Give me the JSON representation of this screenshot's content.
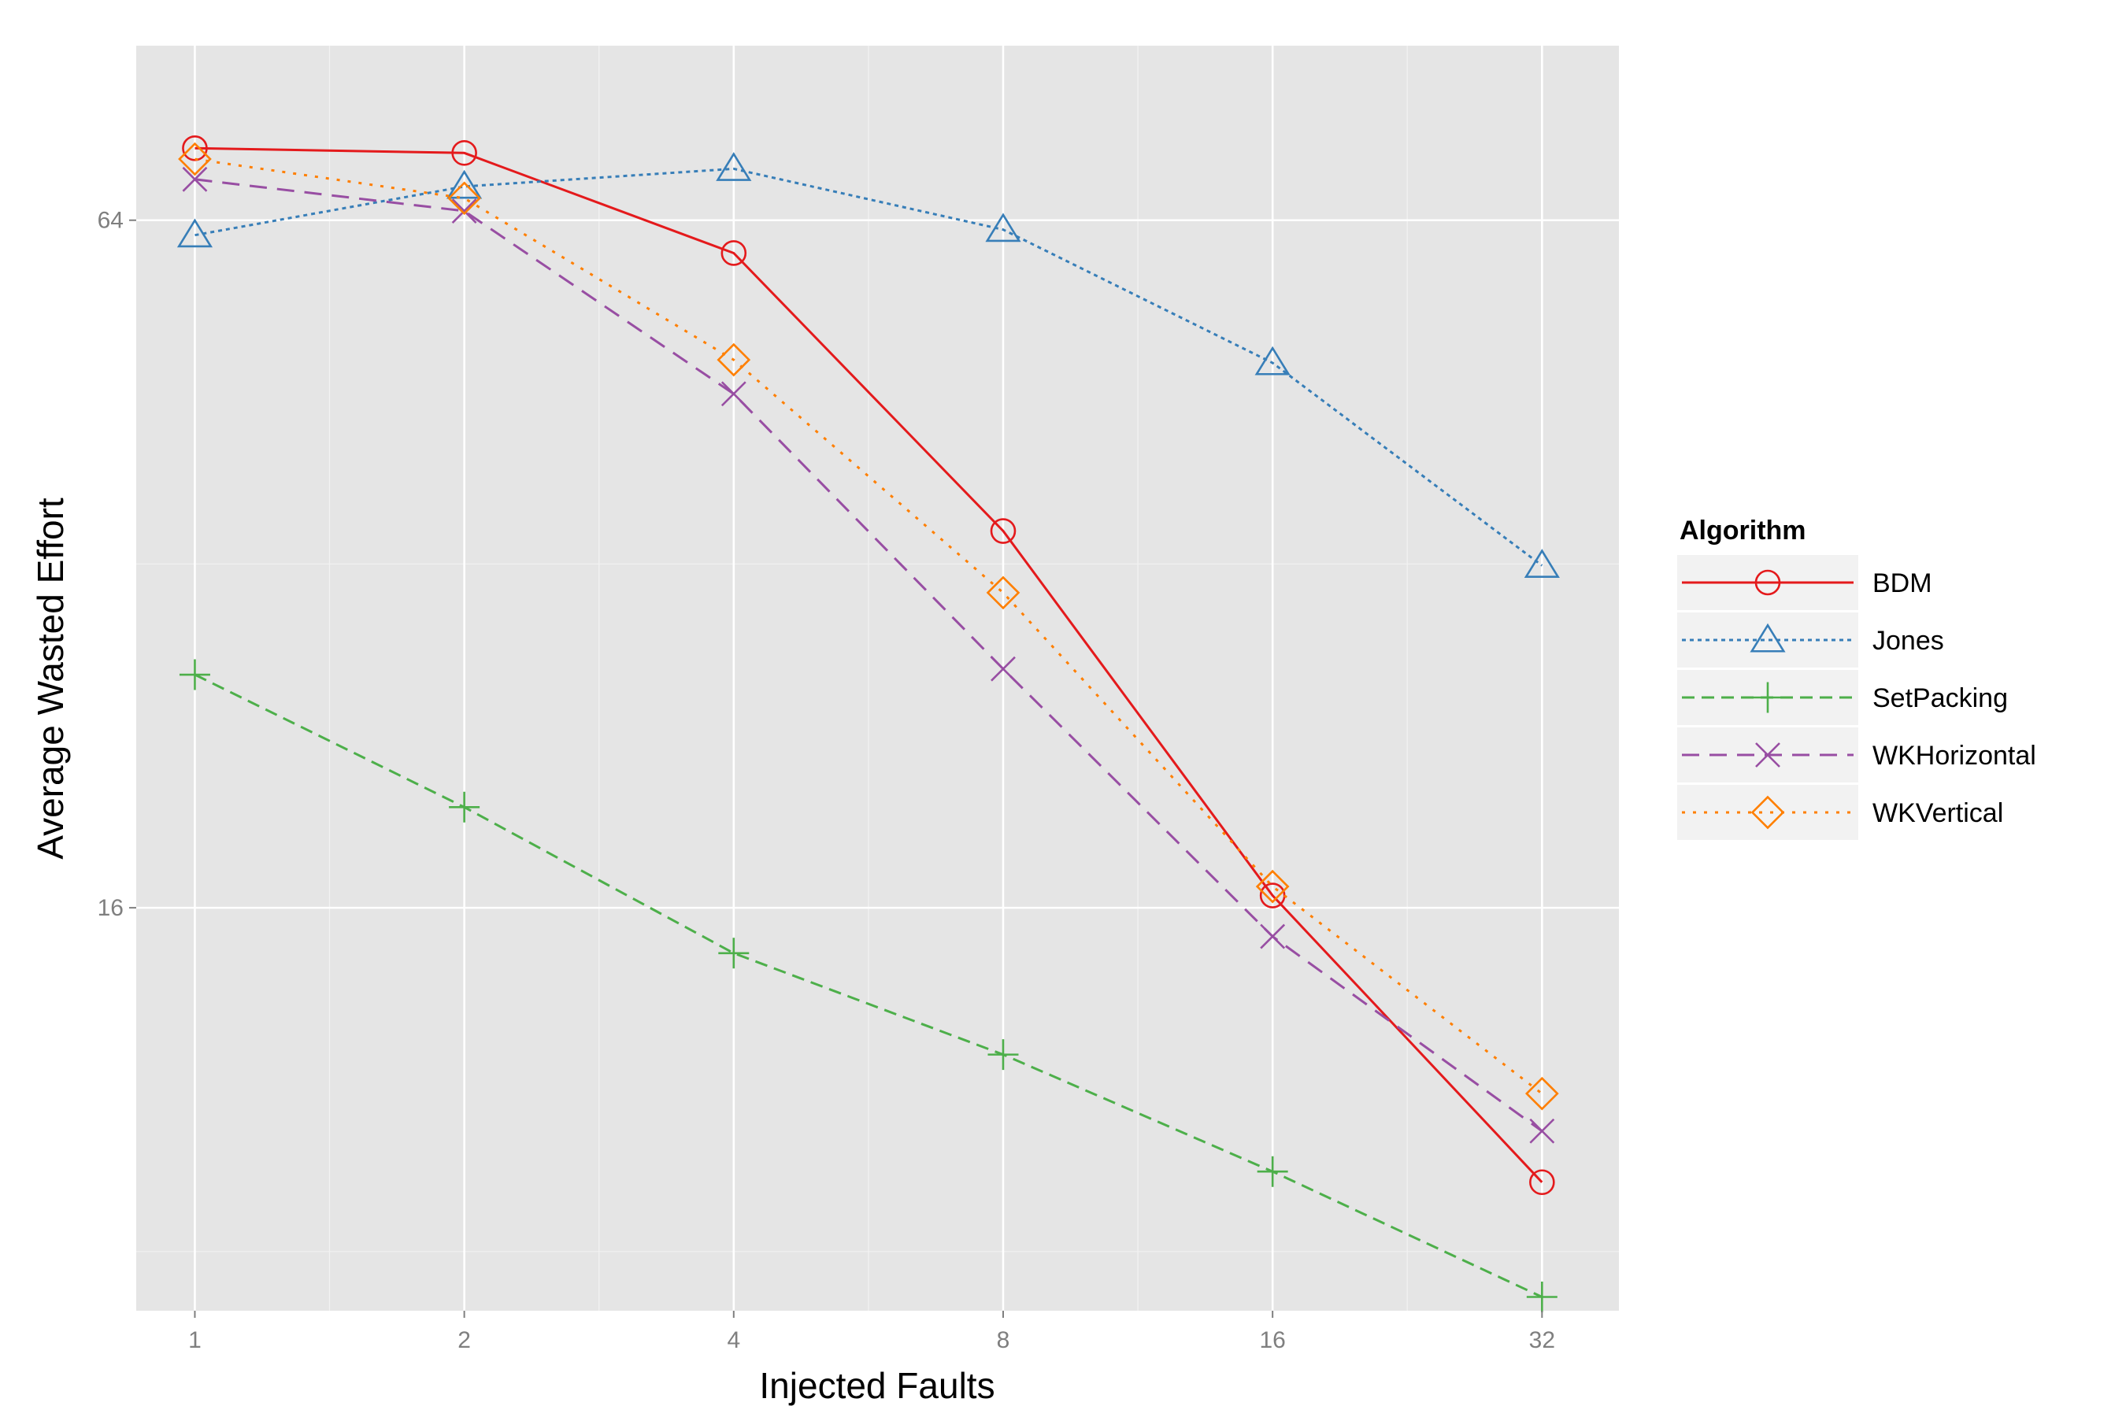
{
  "chart_data": {
    "type": "line",
    "xlabel": "Injected Faults",
    "ylabel": "Average Wasted Effort",
    "x_scale": "log2",
    "y_scale": "log",
    "xlim": [
      0.86,
      39
    ],
    "ylim": [
      7.1,
      91
    ],
    "x": [
      1,
      2,
      4,
      8,
      16,
      32
    ],
    "x_tick_labels": [
      "1",
      "2",
      "4",
      "8",
      "16",
      "32"
    ],
    "y_ticks": [
      16,
      64
    ],
    "y_tick_labels": [
      "16",
      "64"
    ],
    "y_minor_ticks": [
      8,
      32
    ],
    "grid": true,
    "legend": {
      "title": "Algorithm",
      "position": "right"
    },
    "series": [
      {
        "name": "BDM",
        "values": [
          74.0,
          73.3,
          59.9,
          34.2,
          16.4,
          9.2
        ],
        "color": "#e41a1c",
        "marker": "circle",
        "line": "solid"
      },
      {
        "name": "Jones",
        "values": [
          62.1,
          68.5,
          71.0,
          62.8,
          48.0,
          31.9
        ],
        "color": "#377eb8",
        "marker": "triangle",
        "line": "dotted-fine"
      },
      {
        "name": "SetPacking",
        "values": [
          25.6,
          19.6,
          14.6,
          11.9,
          9.4,
          7.3
        ],
        "color": "#4daf4a",
        "marker": "plus",
        "line": "dashed"
      },
      {
        "name": "WKHorizontal",
        "values": [
          69.5,
          65.2,
          45.1,
          25.9,
          15.1,
          10.2
        ],
        "color": "#984ea3",
        "marker": "cross",
        "line": "longdash"
      },
      {
        "name": "WKVertical",
        "values": [
          72.4,
          66.9,
          48.3,
          30.2,
          16.7,
          11.0
        ],
        "color": "#ff7f00",
        "marker": "diamond",
        "line": "dotted"
      }
    ]
  }
}
